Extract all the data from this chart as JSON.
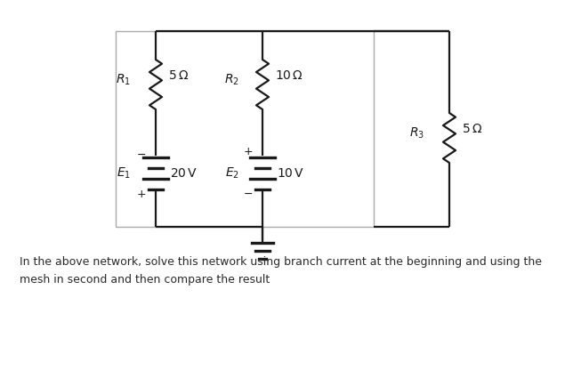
{
  "bg_color": "#ffffff",
  "circuit_color": "#1a1a1a",
  "caption_line1": "In the above network, solve this network using branch current at the beginning and using the",
  "caption_line2": "mesh in second and then compare the result",
  "caption_fontsize": 9.0,
  "caption_color": "#2a2a2a"
}
